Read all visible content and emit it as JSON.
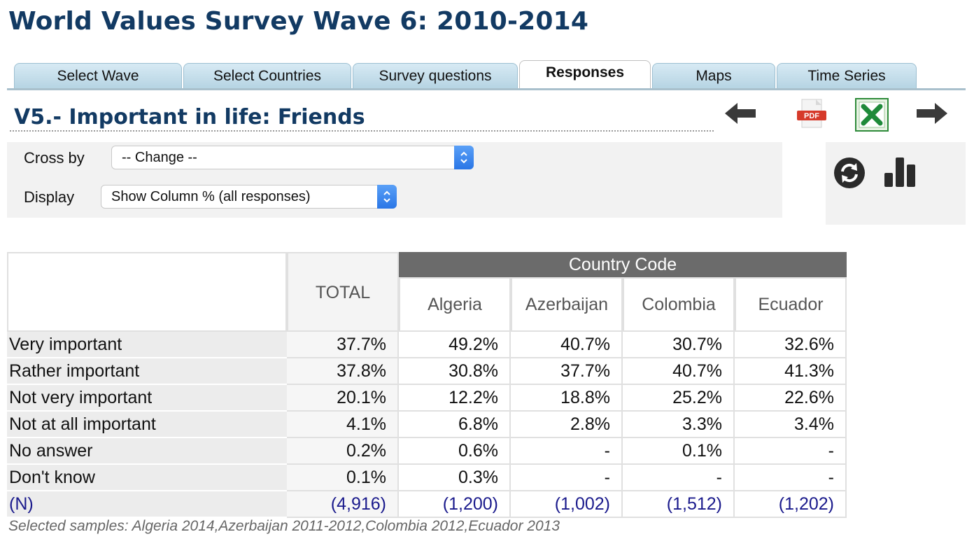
{
  "page": {
    "title": "World Values Survey Wave 6: 2010-2014"
  },
  "tabs": [
    {
      "label": "Select Wave",
      "active": false
    },
    {
      "label": "Select Countries",
      "active": false
    },
    {
      "label": "Survey questions",
      "active": false
    },
    {
      "label": "Responses",
      "active": true
    },
    {
      "label": "Maps",
      "active": false
    },
    {
      "label": "Time Series",
      "active": false
    }
  ],
  "question": {
    "title": "V5.- Important in life: Friends"
  },
  "toolbar": {
    "prev_icon": "arrow-left-icon",
    "pdf_icon": "pdf-icon",
    "pdf_label": "PDF",
    "excel_icon": "excel-icon",
    "next_icon": "arrow-right-icon",
    "refresh_icon": "refresh-icon",
    "chart_icon": "bar-chart-icon"
  },
  "controls": {
    "cross_by": {
      "label": "Cross by",
      "value": "-- Change --"
    },
    "display": {
      "label": "Display",
      "value": "Show Column % (all responses)"
    }
  },
  "table": {
    "total_header": "TOTAL",
    "group_header": "Country Code",
    "columns": [
      "Algeria",
      "Azerbaijan",
      "Colombia",
      "Ecuador"
    ],
    "rows": [
      {
        "label": "Very important",
        "total": "37.7%",
        "values": [
          "49.2%",
          "40.7%",
          "30.7%",
          "32.6%"
        ]
      },
      {
        "label": "Rather important",
        "total": "37.8%",
        "values": [
          "30.8%",
          "37.7%",
          "40.7%",
          "41.3%"
        ]
      },
      {
        "label": "Not very important",
        "total": "20.1%",
        "values": [
          "12.2%",
          "18.8%",
          "25.2%",
          "22.6%"
        ]
      },
      {
        "label": "Not at all important",
        "total": "4.1%",
        "values": [
          "6.8%",
          "2.8%",
          "3.3%",
          "3.4%"
        ]
      },
      {
        "label": "No answer",
        "total": "0.2%",
        "values": [
          "0.6%",
          "-",
          "0.1%",
          "-"
        ]
      },
      {
        "label": "Don't know",
        "total": "0.1%",
        "values": [
          "0.3%",
          "-",
          "-",
          "-"
        ]
      }
    ],
    "n_row": {
      "label": "(N)",
      "total": "(4,916)",
      "values": [
        "(1,200)",
        "(1,002)",
        "(1,512)",
        "(1,202)"
      ]
    }
  },
  "footnote": "Selected samples: Algeria 2014,Azerbaijan 2011-2012,Colombia 2012,Ecuador 2013",
  "colors": {
    "title": "#123a63",
    "tab": "#c3dce9",
    "header_dark": "#6b6b6b",
    "n_row": "#1a1a8c"
  }
}
